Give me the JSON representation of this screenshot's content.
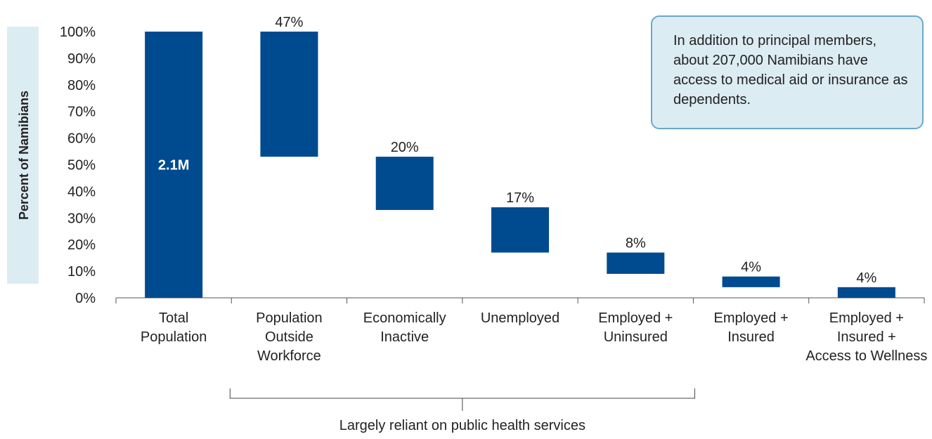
{
  "chart_data": {
    "type": "bar",
    "subtype": "waterfall",
    "ylabel": "Percent of Namibians",
    "ylim": [
      0,
      100
    ],
    "yticks": [
      "0%",
      "10%",
      "20%",
      "30%",
      "40%",
      "50%",
      "60%",
      "70%",
      "80%",
      "90%",
      "100%"
    ],
    "bar_color": "#004a8f",
    "categories": [
      [
        "Total",
        "Population"
      ],
      [
        "Population",
        "Outside",
        "Workforce"
      ],
      [
        "Economically",
        "Inactive"
      ],
      [
        "Unemployed"
      ],
      [
        "Employed +",
        "Uninsured"
      ],
      [
        "Employed +",
        "Insured"
      ],
      [
        "Employed +",
        "Insured +",
        "Access to Wellness"
      ]
    ],
    "segments": [
      {
        "low": 0,
        "high": 100,
        "label": "2.1M",
        "label_position": "inside"
      },
      {
        "low": 53,
        "high": 100,
        "label": "47%",
        "label_position": "above"
      },
      {
        "low": 33,
        "high": 53,
        "label": "20%",
        "label_position": "above"
      },
      {
        "low": 17,
        "high": 34,
        "label": "17%",
        "label_position": "above"
      },
      {
        "low": 9,
        "high": 17,
        "label": "8%",
        "label_position": "above"
      },
      {
        "low": 4,
        "high": 8,
        "label": "4%",
        "label_position": "above"
      },
      {
        "low": 0,
        "high": 4,
        "label": "4%",
        "label_position": "above"
      }
    ],
    "bracket": {
      "text": "Largely reliant on public health services",
      "from_category": 1,
      "to_category": 4
    }
  },
  "callout": {
    "text": "In addition to principal members, about 207,000 Namibians have access to medical aid or insurance as dependents."
  }
}
